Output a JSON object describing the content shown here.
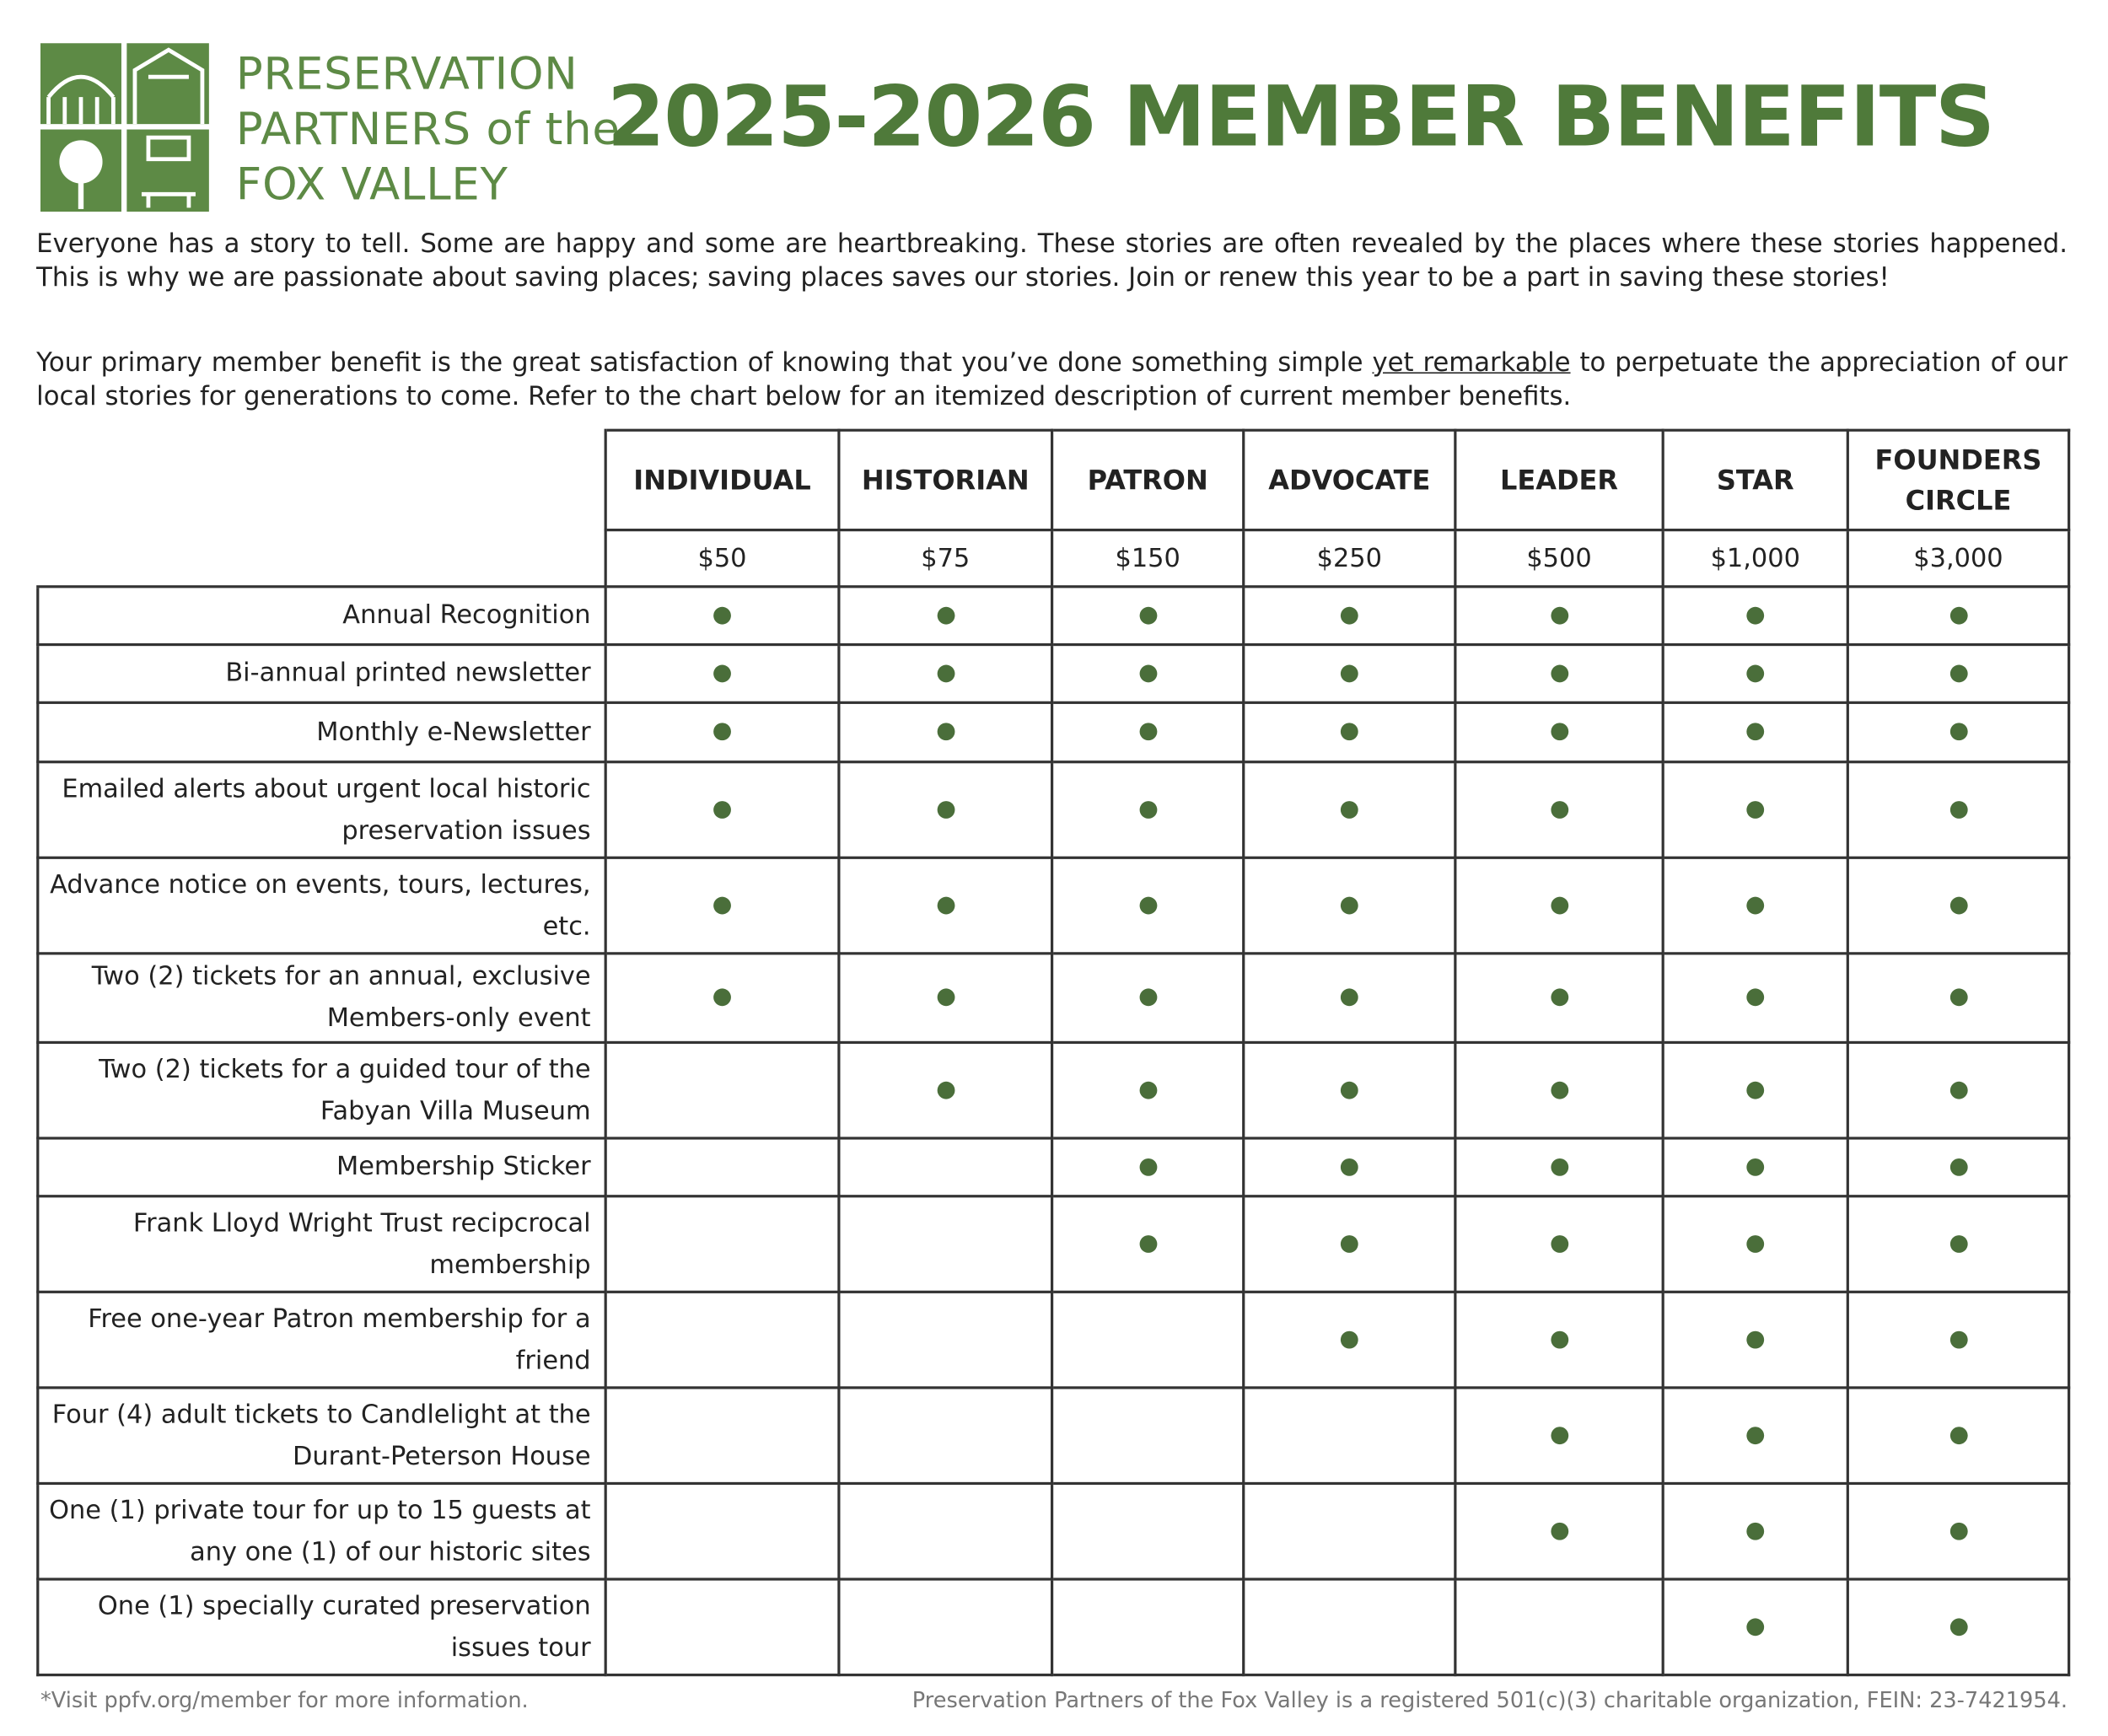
{
  "header": {
    "org_lines": [
      "PRESERVATION",
      "PARTNERS of the",
      "FOX VALLEY"
    ],
    "title": "2025-2026 MEMBER BENEFITS"
  },
  "intro": {
    "paragraph1": "Everyone has a story to tell. Some are happy and some are heartbreaking. These stories are often revealed by the places where these stories happened. This is why we are passionate about saving places; saving places saves our stories. Join or renew this year to be a part in saving these stories!",
    "paragraph2": {
      "before": "Your primary member benefit is the great satisfaction of knowing that you’ve done something simple ",
      "underlined": "yet remarkable",
      "after": " to perpetuate the appreciation of our local stories for generations to come. Refer to the chart below for an itemized description of current member benefits."
    }
  },
  "table": {
    "tiers": [
      {
        "name": "INDIVIDUAL",
        "price": "$50"
      },
      {
        "name": "HISTORIAN",
        "price": "$75"
      },
      {
        "name": "PATRON",
        "price": "$150"
      },
      {
        "name": "ADVOCATE",
        "price": "$250"
      },
      {
        "name": "LEADER",
        "price": "$500"
      },
      {
        "name": "STAR",
        "price": "$1,000"
      },
      {
        "name": "FOUNDERS CIRCLE",
        "price": "$3,000"
      }
    ],
    "benefits": [
      {
        "label": "Annual Recognition",
        "included": [
          true,
          true,
          true,
          true,
          true,
          true,
          true
        ]
      },
      {
        "label": "Bi-annual printed newsletter",
        "included": [
          true,
          true,
          true,
          true,
          true,
          true,
          true
        ]
      },
      {
        "label": "Monthly e-Newsletter",
        "included": [
          true,
          true,
          true,
          true,
          true,
          true,
          true
        ]
      },
      {
        "label": "Emailed alerts about urgent local historic preservation issues",
        "included": [
          true,
          true,
          true,
          true,
          true,
          true,
          true
        ]
      },
      {
        "label": "Advance notice on events, tours, lectures, etc.",
        "included": [
          true,
          true,
          true,
          true,
          true,
          true,
          true
        ]
      },
      {
        "label": "Two (2) tickets for an annual, exclusive Members-only event",
        "included": [
          true,
          true,
          true,
          true,
          true,
          true,
          true
        ]
      },
      {
        "label": "Two (2) tickets for a guided tour of the Fabyan Villa Museum",
        "included": [
          false,
          true,
          true,
          true,
          true,
          true,
          true
        ]
      },
      {
        "label": "Membership Sticker",
        "included": [
          false,
          false,
          true,
          true,
          true,
          true,
          true
        ]
      },
      {
        "label": "Frank Lloyd Wright Trust recipcrocal membership",
        "included": [
          false,
          false,
          true,
          true,
          true,
          true,
          true
        ]
      },
      {
        "label": "Free one-year Patron membership for a friend",
        "included": [
          false,
          false,
          false,
          true,
          true,
          true,
          true
        ]
      },
      {
        "label": "Four (4) adult tickets to Candlelight at the Durant-Peterson House",
        "included": [
          false,
          false,
          false,
          false,
          true,
          true,
          true
        ]
      },
      {
        "label": "One (1) private tour for up to 15 guests at any one (1) of our historic sites",
        "included": [
          false,
          false,
          false,
          false,
          true,
          true,
          true
        ]
      },
      {
        "label": "One (1) specially curated preservation issues tour",
        "included": [
          false,
          false,
          false,
          false,
          false,
          true,
          true
        ]
      }
    ]
  },
  "footer": {
    "left": "*Visit ppfv.org/member for more information.",
    "right": "Preservation Partners of the Fox Valley is a registered 501(c)(3) charitable organization, FEIN: 23-7421954."
  }
}
